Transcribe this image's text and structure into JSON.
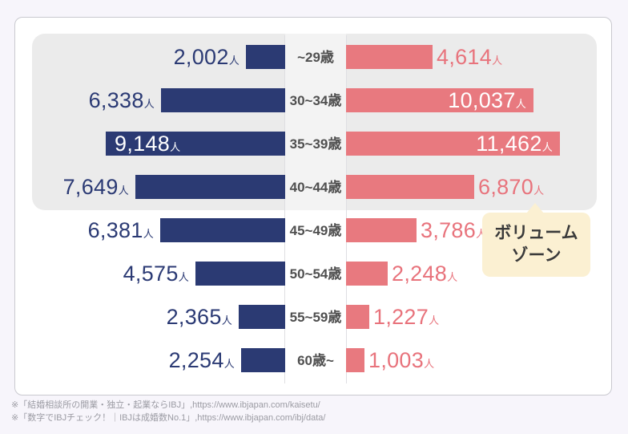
{
  "colors": {
    "page_bg": "#F7F5FB",
    "card_bg": "#FFFFFF",
    "left_bar": "#2B3A73",
    "right_bar": "#E8797F",
    "left_value_text": "#2B3A74",
    "right_value_text": "#E8737C",
    "inside_value_text": "#FFFFFF",
    "zone_bg": "#EBEBEB",
    "callout_bg": "#FBF0D2",
    "age_label_text": "#4F4F4F",
    "footnote_text": "#9B9BA3"
  },
  "chart_data": {
    "type": "bar",
    "orientation": "diverging-horizontal",
    "categories": [
      "~29歳",
      "30~34歳",
      "35~39歳",
      "40~44歳",
      "45~49歳",
      "50~54歳",
      "55~59歳",
      "60歳~"
    ],
    "series": [
      {
        "name": "left",
        "color": "#2B3A73",
        "values": [
          2002,
          6338,
          9148,
          7649,
          6381,
          4575,
          2365,
          2254
        ]
      },
      {
        "name": "right",
        "color": "#E8797F",
        "values": [
          4614,
          10037,
          11462,
          6870,
          3786,
          2248,
          1227,
          1003
        ]
      }
    ],
    "unit_suffix": "人",
    "grid": false,
    "legend": "none",
    "highlight_zone": {
      "categories": [
        "~29歳",
        "30~34歳",
        "35~39歳",
        "40~44歳"
      ],
      "label": "ボリュームゾーン"
    }
  },
  "callout": {
    "line1": "ボリューム",
    "line2": "ゾーン"
  },
  "footnotes": [
    "※「結婚相談所の開業・独立・起業ならIBJ」,https://www.ibjapan.com/kaisetu/",
    "※「数字でIBJチェック！｜IBJは成婚数No.1」,https://www.ibjapan.com/ibj/data/"
  ]
}
